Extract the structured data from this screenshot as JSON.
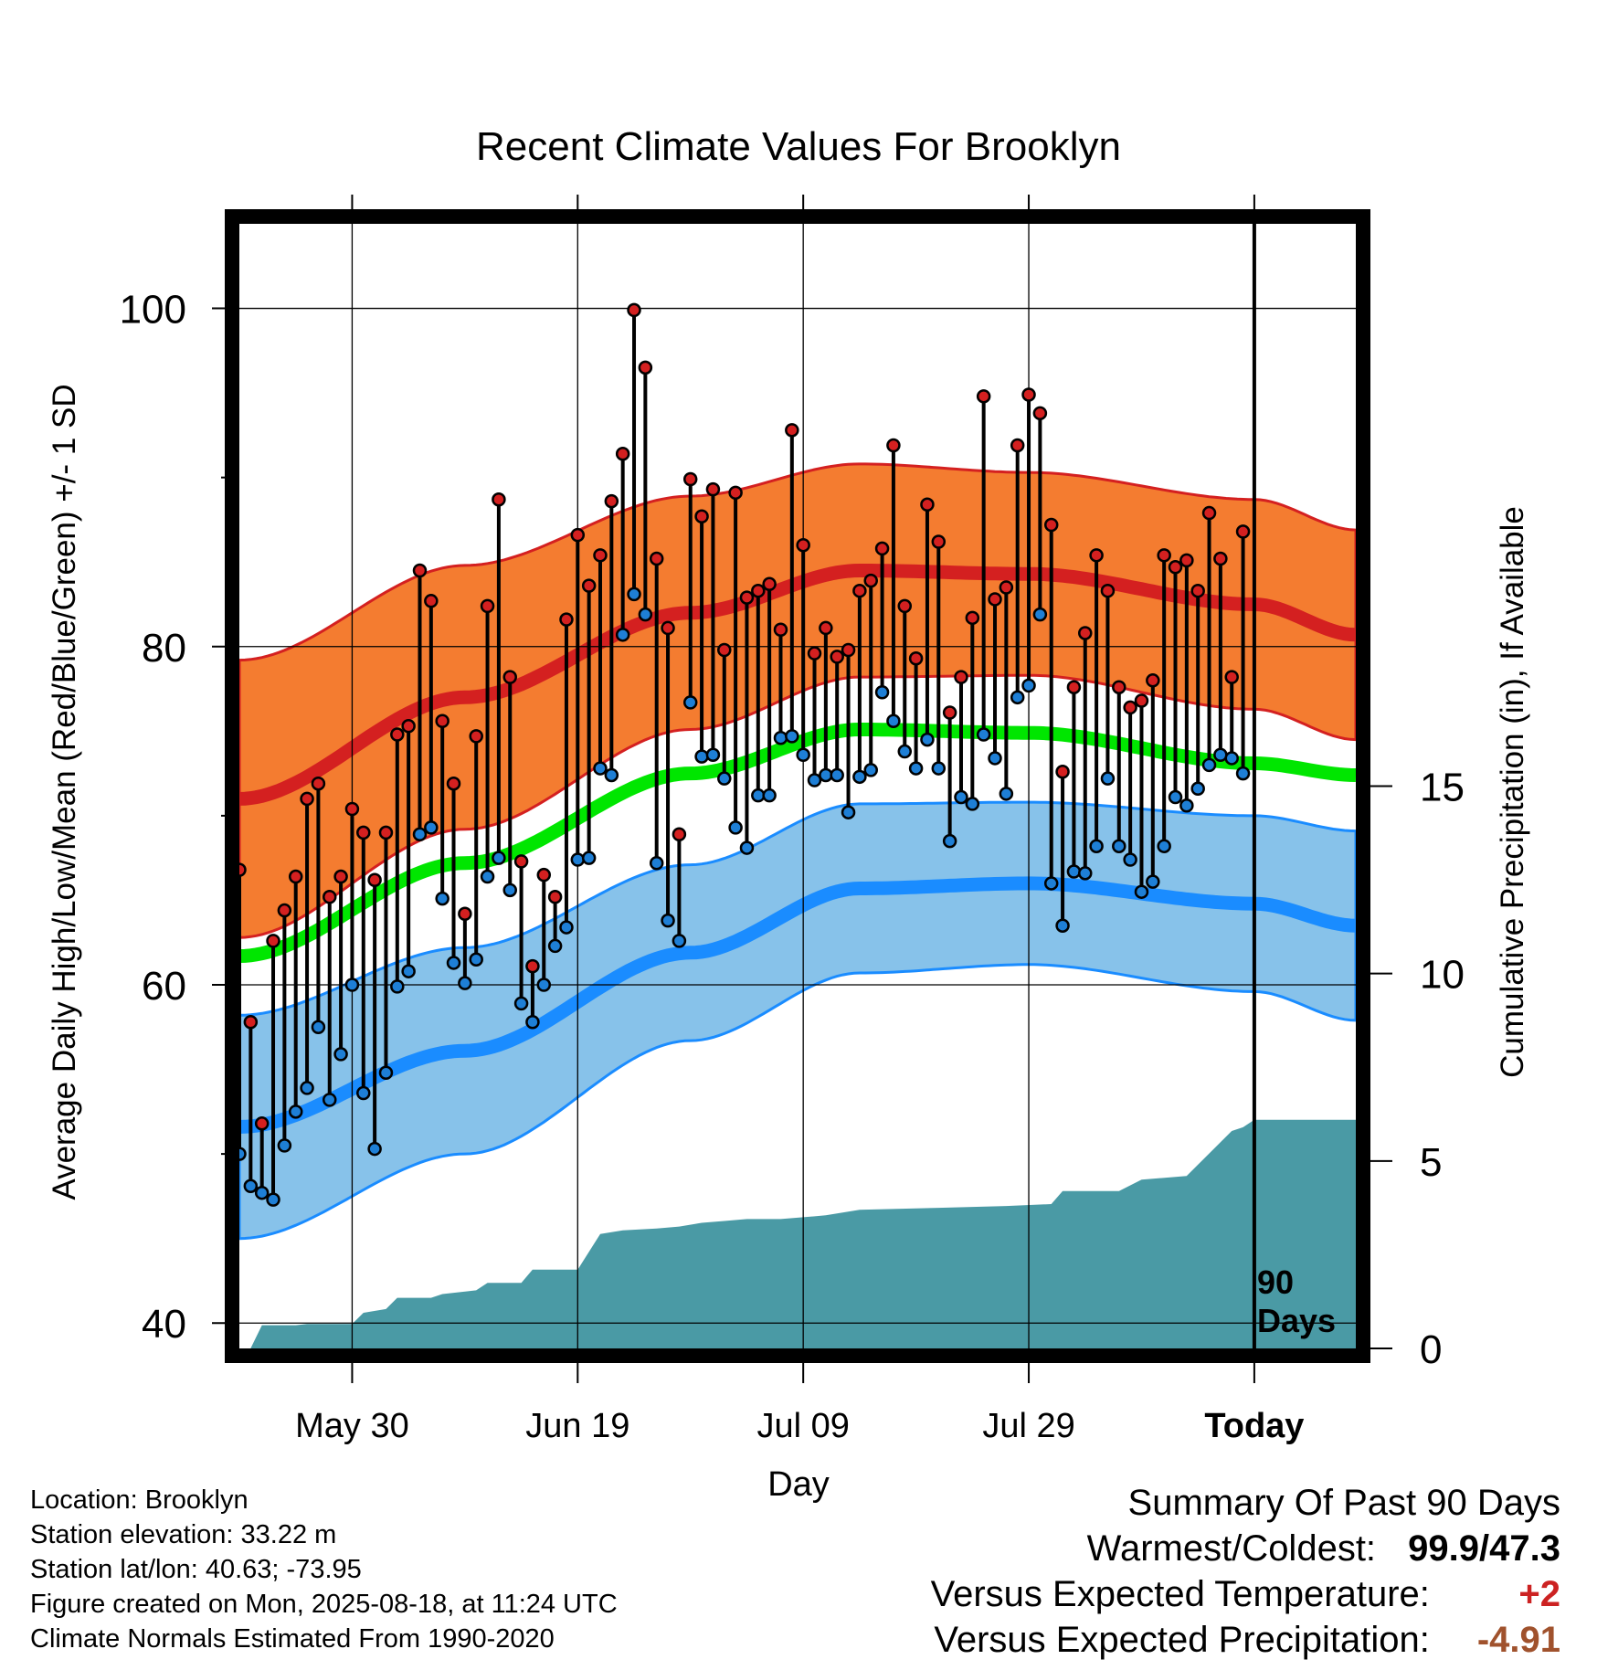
{
  "title": "Recent Climate Values For Brooklyn",
  "y_label_left": "Average Daily High/Low/Mean (Red/Blue/Green) +/- 1 SD",
  "y_label_right": "Cumulative Precipitation (in), If Available",
  "x_label": "Day",
  "today_marker": {
    "line1": "90",
    "line2": "Days"
  },
  "info": {
    "location": "Location: Brooklyn",
    "elevation": "Station elevation: 33.22 m",
    "latlon": "Station lat/lon: 40.63; -73.95",
    "created": "Figure created on Mon, 2025-08-18, at 11:24 UTC",
    "normals": "Climate Normals Estimated From 1990-2020"
  },
  "summary": {
    "heading": "Summary Of Past 90 Days",
    "warmest_label": "Warmest/Coldest:",
    "warmest_value": "99.9/47.3",
    "temp_label": "Versus Expected Temperature:",
    "temp_value": "+2",
    "temp_color": "#cc2222",
    "precip_label": "Versus Expected Precipitation:",
    "precip_value": "-4.91",
    "precip_color": "#a0522d"
  },
  "chart_data": {
    "type": "line",
    "x_unit": "day",
    "x_range": [
      -90,
      9
    ],
    "x_ticks": [
      {
        "x": -80,
        "label": "May 30"
      },
      {
        "x": -60,
        "label": "Jun 19"
      },
      {
        "x": -40,
        "label": "Jul 09"
      },
      {
        "x": -20,
        "label": "Jul 29"
      },
      {
        "x": 0,
        "label": "Today"
      }
    ],
    "ylim": [
      38.5,
      105
    ],
    "y_ticks": [
      40,
      60,
      80,
      100
    ],
    "y_minor_ticks": [
      50,
      70,
      90
    ],
    "precip_ylim": [
      0,
      30
    ],
    "precip_ticks": [
      0,
      5,
      10,
      15
    ],
    "grid": true,
    "colors": {
      "high_band": "#f47c30",
      "high_band_edge": "#d42020",
      "high_mean": "#d42020",
      "mean_line": "#00e600",
      "low_band": "#87c2ea",
      "low_band_edge": "#1a8cff",
      "low_mean": "#1a8cff",
      "high_dot": "#d42020",
      "low_dot": "#1e7fd6",
      "precip": "#4a9aa5"
    },
    "normals": {
      "x": [
        -90,
        -70,
        -50,
        -35,
        -20,
        0,
        9
      ],
      "high_mean": [
        71,
        77,
        82,
        84.5,
        84.3,
        82.5,
        80.7
      ],
      "high_sd": [
        8.2,
        7.8,
        6.9,
        6.3,
        6.0,
        6.2,
        6.2
      ],
      "mean": [
        61.7,
        67.2,
        72.5,
        75.1,
        74.9,
        73.1,
        72.4
      ],
      "low_mean": [
        51.6,
        56.1,
        61.9,
        65.7,
        66.0,
        64.8,
        63.5
      ],
      "low_sd": [
        6.6,
        6.1,
        5.2,
        5.0,
        4.8,
        5.2,
        5.6
      ]
    },
    "series": [
      {
        "name": "High",
        "values": [
          66.8,
          57.8,
          51.8,
          62.6,
          64.4,
          66.4,
          71.0,
          71.9,
          65.2,
          66.4,
          70.4,
          69.0,
          66.2,
          69.0,
          74.8,
          75.3,
          84.5,
          82.7,
          75.6,
          71.9,
          64.2,
          74.7,
          82.4,
          88.7,
          78.2,
          67.3,
          61.1,
          66.5,
          65.2,
          81.6,
          86.6,
          83.6,
          85.4,
          88.6,
          91.4,
          99.9,
          96.5,
          85.2,
          81.1,
          68.9,
          89.9,
          87.7,
          89.3,
          79.8,
          89.1,
          82.9,
          83.3,
          83.7,
          81.0,
          92.8,
          86.0,
          79.6,
          81.1,
          79.4,
          79.8,
          83.3,
          83.9,
          85.8,
          91.9,
          82.4,
          79.3,
          88.4,
          86.2,
          76.1,
          78.2,
          81.7,
          94.8,
          82.8,
          83.5,
          91.9,
          94.9,
          93.8,
          87.2,
          72.6,
          77.6,
          80.8,
          85.4,
          83.3,
          77.6,
          76.4,
          76.8,
          78.0,
          85.4,
          84.7,
          85.1,
          83.3,
          87.9,
          85.2,
          78.2,
          86.8
        ]
      },
      {
        "name": "Low",
        "values": [
          50.0,
          48.1,
          47.7,
          47.3,
          50.5,
          52.5,
          53.9,
          57.5,
          53.2,
          55.9,
          60.0,
          53.6,
          50.3,
          54.8,
          59.9,
          60.8,
          68.9,
          69.3,
          65.1,
          61.3,
          60.1,
          61.5,
          66.4,
          67.5,
          65.6,
          58.9,
          57.8,
          60.0,
          62.3,
          63.4,
          67.4,
          67.5,
          72.8,
          72.4,
          80.7,
          83.1,
          81.9,
          67.2,
          63.8,
          62.6,
          76.7,
          73.5,
          73.6,
          72.2,
          69.3,
          68.1,
          71.2,
          71.2,
          74.6,
          74.7,
          73.6,
          72.1,
          72.4,
          72.4,
          70.2,
          72.3,
          72.7,
          77.3,
          75.6,
          73.8,
          72.8,
          74.5,
          72.8,
          68.5,
          71.1,
          70.7,
          74.8,
          73.4,
          71.3,
          77.0,
          77.7,
          81.9,
          66.0,
          63.5,
          66.7,
          66.6,
          68.2,
          72.2,
          68.2,
          67.4,
          65.5,
          66.1,
          68.2,
          71.1,
          70.6,
          71.6,
          73.0,
          73.6,
          73.4,
          72.5
        ]
      }
    ],
    "precipitation": {
      "name": "Cumulative Precipitation",
      "x": [
        -89,
        -88,
        -85,
        -84,
        -80,
        -79,
        -77,
        -76,
        -73,
        -72,
        -69,
        -68,
        -65,
        -64,
        -60,
        -58,
        -56,
        -53,
        -51,
        -49,
        -47,
        -45,
        -42,
        -40,
        -38,
        -35,
        -28,
        -22,
        -18,
        -17,
        -12,
        -10,
        -6,
        -5,
        -2,
        -1,
        0,
        9
      ],
      "values": [
        0,
        0.62,
        0.62,
        0.65,
        0.65,
        0.95,
        1.05,
        1.35,
        1.35,
        1.45,
        1.55,
        1.75,
        1.75,
        2.1,
        2.1,
        3.05,
        3.15,
        3.2,
        3.25,
        3.35,
        3.4,
        3.45,
        3.45,
        3.5,
        3.55,
        3.7,
        3.75,
        3.8,
        3.85,
        4.2,
        4.2,
        4.5,
        4.6,
        4.9,
        5.8,
        5.9,
        6.1,
        6.1
      ]
    }
  }
}
